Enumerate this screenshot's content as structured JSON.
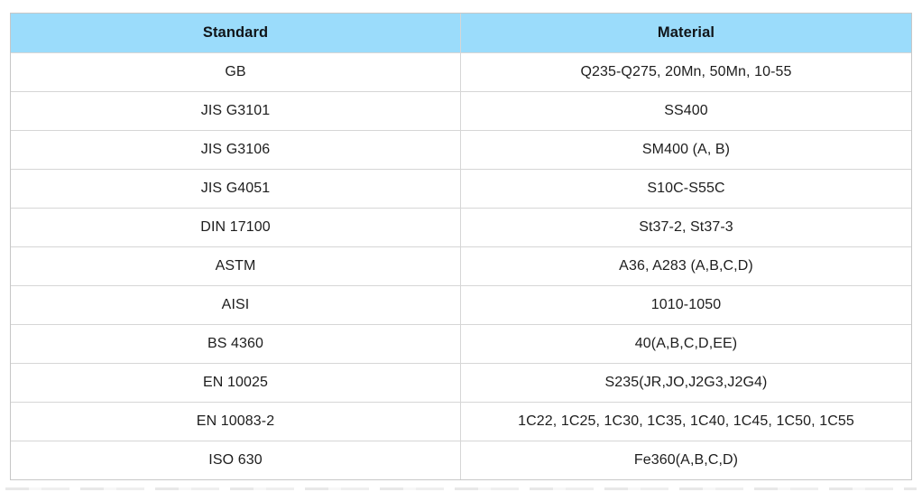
{
  "table": {
    "columns": [
      {
        "label": "Standard"
      },
      {
        "label": "Material"
      }
    ],
    "rows": [
      {
        "standard": "GB",
        "material": "Q235-Q275, 20Mn, 50Mn, 10-55"
      },
      {
        "standard": "JIS G3101",
        "material": "SS400"
      },
      {
        "standard": "JIS G3106",
        "material": "SM400 (A, B)"
      },
      {
        "standard": "JIS G4051",
        "material": "S10C-S55C"
      },
      {
        "standard": "DIN 17100",
        "material": "St37-2, St37-3"
      },
      {
        "standard": "ASTM",
        "material": "A36, A283 (A,B,C,D)"
      },
      {
        "standard": "AISI",
        "material": "1010-1050"
      },
      {
        "standard": "BS 4360",
        "material": "40(A,B,C,D,EE)"
      },
      {
        "standard": "EN 10025",
        "material": "S235(JR,JO,J2G3,J2G4)"
      },
      {
        "standard": "EN 10083-2",
        "material": "1C22, 1C25, 1C30, 1C35, 1C40, 1C45, 1C50, 1C55"
      },
      {
        "standard": "ISO 630",
        "material": "Fe360(A,B,C,D)"
      }
    ],
    "colors": {
      "header_bg": "#9bdcfb",
      "border": "#d6d6d6",
      "outer_border": "#c7c7c7",
      "text": "#1d1d1d"
    }
  }
}
